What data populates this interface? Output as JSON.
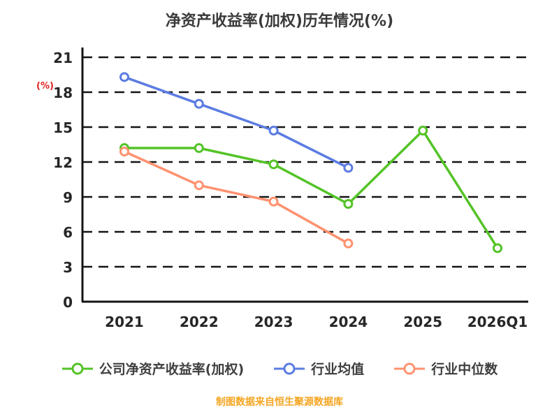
{
  "title": "净资产收益率(加权)历年情况(%)",
  "y_axis_unit": "(%)",
  "footer_note": "制图数据来自恒生聚源数据库",
  "colors": {
    "company": "#54c327",
    "industry_avg": "#5b7ce2",
    "industry_median": "#ff9270",
    "title_text": "#3a3a3a",
    "axis": "#141414",
    "unit_label": "#e02020",
    "footer_text": "#f5a623"
  },
  "chart_data": {
    "type": "line",
    "categories": [
      "2021",
      "2022",
      "2023",
      "2024",
      "2025",
      "2026Q1"
    ],
    "series": [
      {
        "name": "公司净资产收益率(加权)",
        "color_key": "company",
        "values": [
          13.2,
          13.2,
          11.8,
          8.4,
          14.7,
          4.6
        ]
      },
      {
        "name": "行业均值",
        "color_key": "industry_avg",
        "values": [
          19.3,
          17.0,
          14.7,
          11.5,
          null,
          null
        ]
      },
      {
        "name": "行业中位数",
        "color_key": "industry_median",
        "values": [
          12.9,
          10.0,
          8.6,
          5.0,
          null,
          null
        ]
      }
    ],
    "ylim": [
      0,
      21
    ],
    "yticks": [
      0,
      3,
      6,
      9,
      12,
      15,
      18,
      21
    ],
    "grid": "dashed horizontal",
    "legend_position": "bottom",
    "xlabel": "",
    "ylabel": "(%)"
  }
}
